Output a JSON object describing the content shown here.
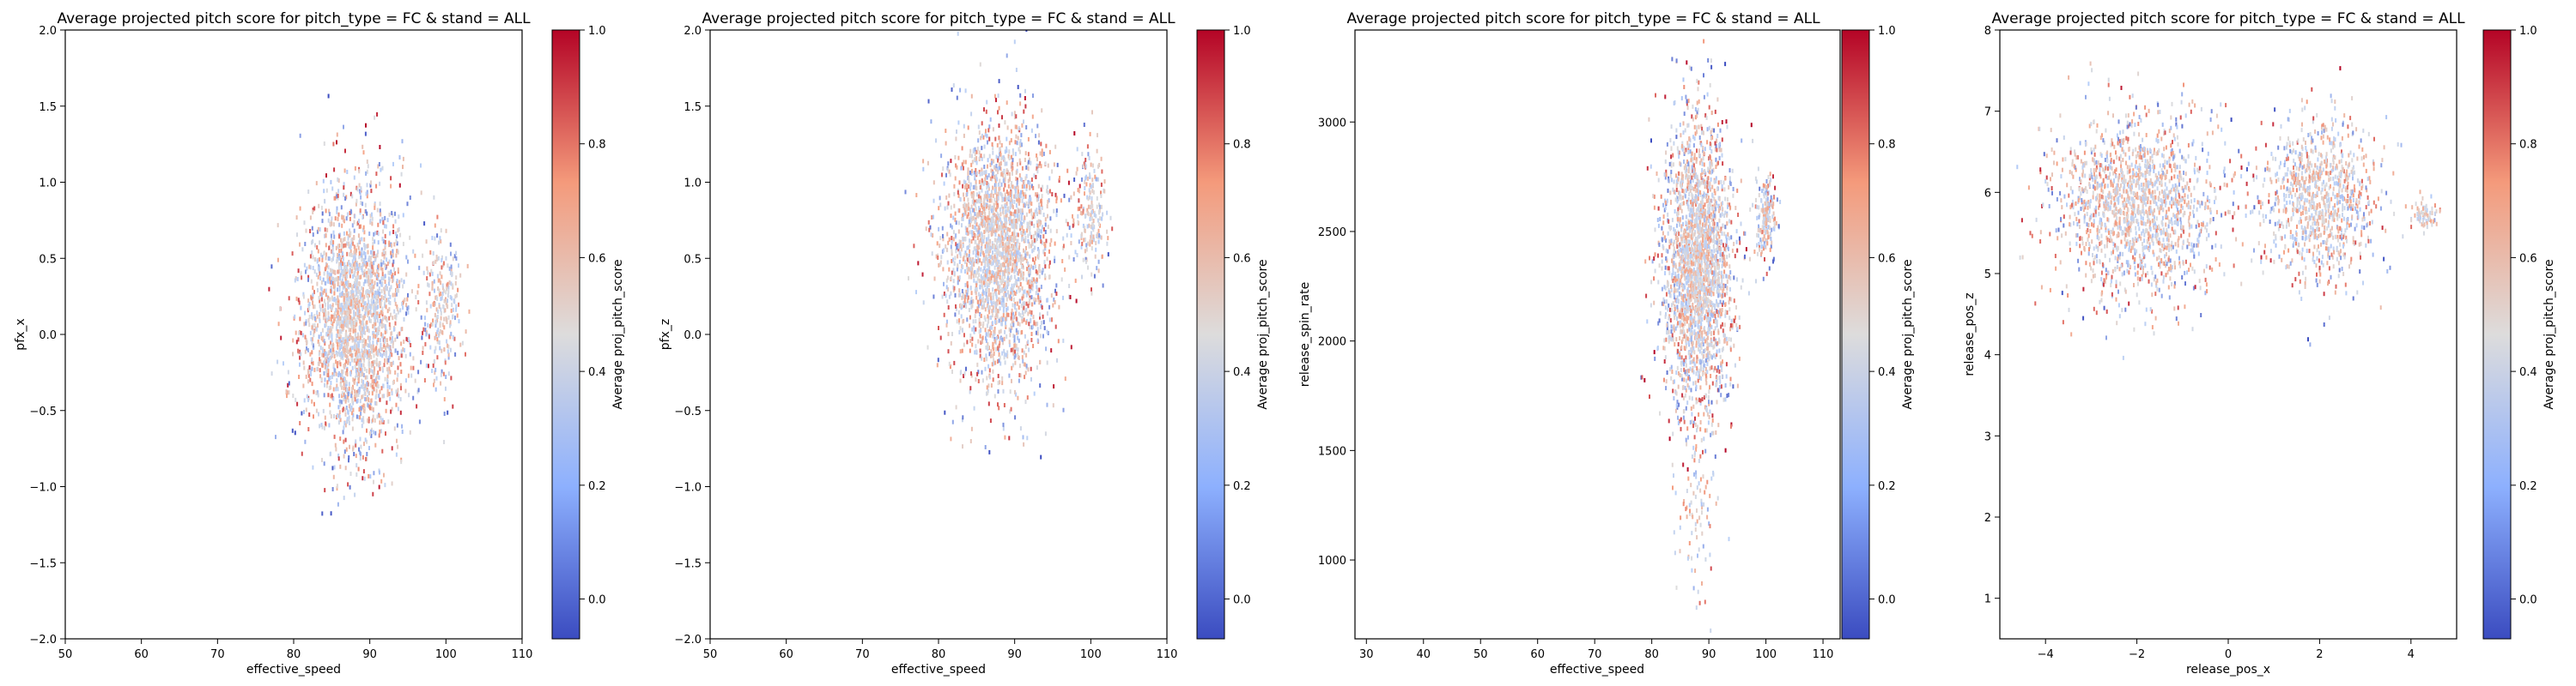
{
  "figure": {
    "colormap": "coolwarm",
    "colormap_colors": [
      "#3b4cc0",
      "#b7cff9",
      "#dddcdc",
      "#f6a385",
      "#b40426"
    ]
  },
  "chart_data": [
    {
      "type": "heatmap",
      "title": "Average projected pitch score for pitch_type = FC & stand = ALL",
      "xlabel": "effective_speed",
      "ylabel": "pfx_x",
      "xlim": [
        50,
        110
      ],
      "ylim": [
        -2.0,
        2.0
      ],
      "xticks": [
        "50",
        "60",
        "70",
        "80",
        "90",
        "100",
        "110"
      ],
      "yticks": [
        "-2.0",
        "-1.5",
        "-1.0",
        "-0.5",
        "0.0",
        "0.5",
        "1.0",
        "1.5",
        "2.0"
      ],
      "colorbar": {
        "label": "Average proj_pitch_score",
        "range": [
          -0.07,
          1.0
        ],
        "ticks": [
          "0.0",
          "0.2",
          "0.4",
          "0.6",
          "0.8",
          "1.0"
        ]
      },
      "clusters": [
        {
          "cx": 88,
          "cy": 0.1,
          "sx": 3.5,
          "sy": 0.42,
          "weight": 1.0
        },
        {
          "cx": 99.5,
          "cy": 0.15,
          "sx": 1.2,
          "sy": 0.25,
          "weight": 0.1
        }
      ],
      "grid": false
    },
    {
      "type": "heatmap",
      "title": "Average projected pitch score for pitch_type = FC & stand = ALL",
      "xlabel": "effective_speed",
      "ylabel": "pfx_z",
      "xlim": [
        50,
        110
      ],
      "ylim": [
        -2.0,
        2.0
      ],
      "xticks": [
        "50",
        "60",
        "70",
        "80",
        "90",
        "100",
        "110"
      ],
      "yticks": [
        "-2.0",
        "-1.5",
        "-1.0",
        "-0.5",
        "0.0",
        "0.5",
        "1.0",
        "1.5",
        "2.0"
      ],
      "colorbar": {
        "label": "Average proj_pitch_score",
        "range": [
          -0.07,
          1.0
        ],
        "ticks": [
          "0.0",
          "0.2",
          "0.4",
          "0.6",
          "0.8",
          "1.0"
        ]
      },
      "clusters": [
        {
          "cx": 88,
          "cy": 0.55,
          "sx": 3.6,
          "sy": 0.42,
          "weight": 1.0
        },
        {
          "cx": 100,
          "cy": 0.8,
          "sx": 1.0,
          "sy": 0.2,
          "weight": 0.08
        }
      ],
      "grid": false
    },
    {
      "type": "heatmap",
      "title": "Average projected pitch score for pitch_type = FC & stand = ALL",
      "xlabel": "effective_speed",
      "ylabel": "release_spin_rate",
      "xlim": [
        28,
        113
      ],
      "ylim": [
        640,
        3420
      ],
      "xticks": [
        "30",
        "40",
        "50",
        "60",
        "70",
        "80",
        "90",
        "100",
        "110"
      ],
      "yticks": [
        "1000",
        "1500",
        "2000",
        "2500",
        "3000"
      ],
      "colorbar": {
        "label": "Average proj_pitch_score",
        "range": [
          -0.07,
          1.0
        ],
        "ticks": [
          "0.0",
          "0.2",
          "0.4",
          "0.6",
          "0.8",
          "1.0"
        ]
      },
      "clusters": [
        {
          "cx": 88,
          "cy": 2350,
          "sx": 3.0,
          "sy": 330,
          "weight": 1.0
        },
        {
          "cx": 100,
          "cy": 2560,
          "sx": 1.0,
          "sy": 90,
          "weight": 0.08
        },
        {
          "cx": 87.5,
          "cy": 1250,
          "sx": 2.0,
          "sy": 230,
          "weight": 0.04
        }
      ],
      "grid": false
    },
    {
      "type": "heatmap",
      "title": "Average projected pitch score for pitch_type = FC & stand = ALL",
      "xlabel": "release_pos_x",
      "ylabel": "release_pos_z",
      "xlim": [
        -5.0,
        5.0
      ],
      "ylim": [
        0.5,
        8.0
      ],
      "xticks": [
        "-4",
        "-2",
        "0",
        "2",
        "4"
      ],
      "yticks": [
        "1",
        "2",
        "3",
        "4",
        "5",
        "6",
        "7",
        "8"
      ],
      "colorbar": {
        "label": "Average proj_pitch_score",
        "range": [
          -0.07,
          1.0
        ],
        "ticks": [
          "0.0",
          "0.2",
          "0.4",
          "0.6",
          "0.8",
          "1.0"
        ]
      },
      "clusters": [
        {
          "cx": -2.0,
          "cy": 5.85,
          "sx": 0.9,
          "sy": 0.55,
          "weight": 1.0
        },
        {
          "cx": 2.0,
          "cy": 5.9,
          "sx": 0.65,
          "sy": 0.5,
          "weight": 0.6
        },
        {
          "cx": 4.3,
          "cy": 5.7,
          "sx": 0.15,
          "sy": 0.1,
          "weight": 0.04
        }
      ],
      "grid": false
    }
  ]
}
